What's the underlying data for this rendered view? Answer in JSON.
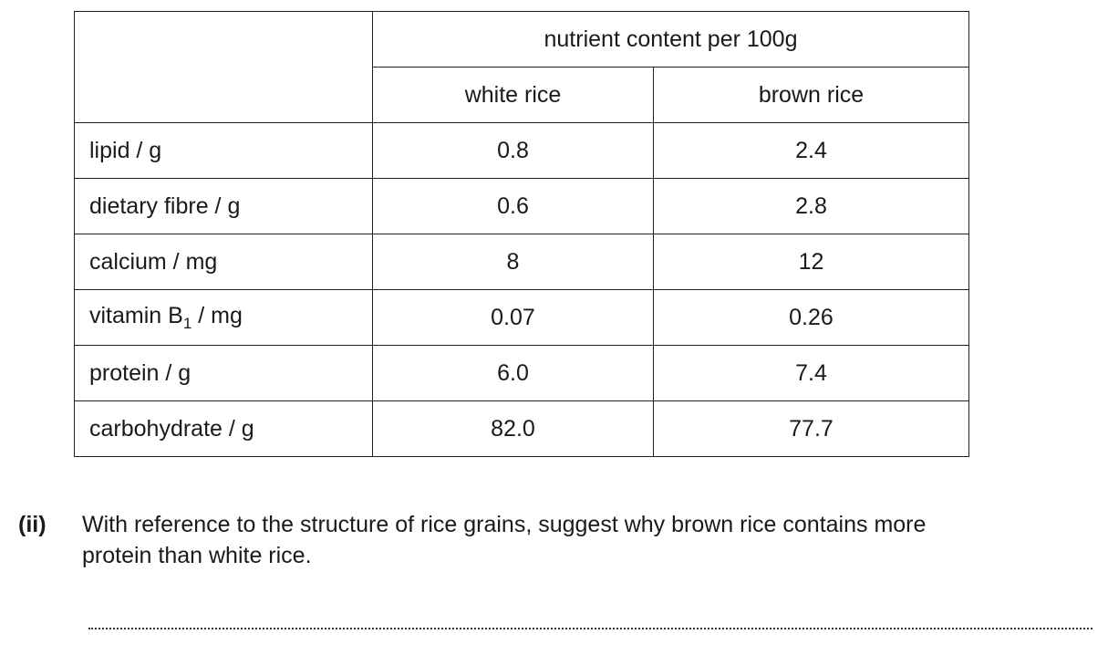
{
  "table": {
    "header": {
      "group": "nutrient content per 100g",
      "columns": [
        "white rice",
        "brown rice"
      ]
    },
    "rows": [
      {
        "label": "lipid / g",
        "values": [
          "0.8",
          "2.4"
        ]
      },
      {
        "label": "dietary fibre / g",
        "values": [
          "0.6",
          "2.8"
        ]
      },
      {
        "label": "calcium / mg",
        "values": [
          "8",
          "12"
        ]
      },
      {
        "label": {
          "main": "vitamin B",
          "sub": "1",
          "unit": " / mg"
        },
        "values": [
          "0.07",
          "0.26"
        ]
      },
      {
        "label": "protein / g",
        "values": [
          "6.0",
          "7.4"
        ]
      },
      {
        "label": "carbohydrate / g",
        "values": [
          "82.0",
          "77.7"
        ]
      }
    ]
  },
  "question": {
    "number": "(ii)",
    "lines": [
      "With reference to the structure of rice grains, suggest why brown rice contains more",
      "protein than white rice."
    ]
  }
}
